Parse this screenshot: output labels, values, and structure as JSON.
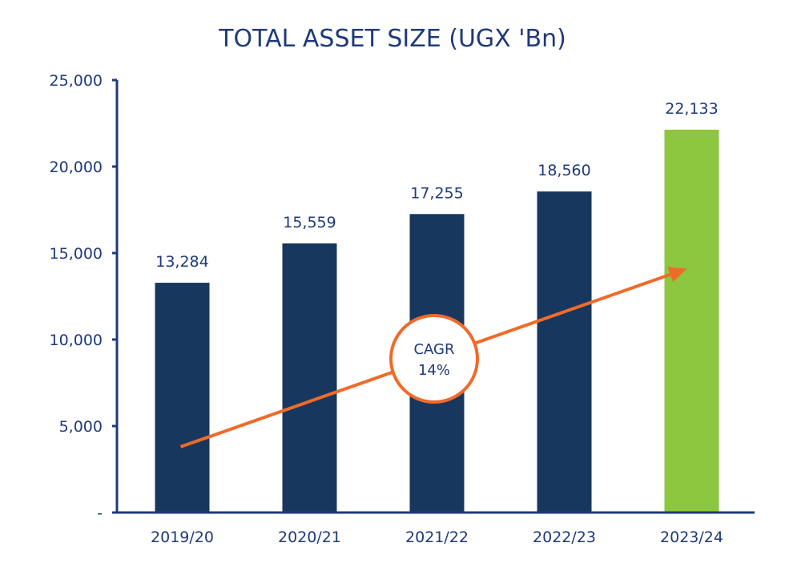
{
  "chart_data": {
    "type": "bar",
    "title": "TOTAL ASSET SIZE (UGX 'Bn)",
    "categories": [
      "2019/20",
      "2020/21",
      "2021/22",
      "2022/23",
      "2023/24"
    ],
    "values": [
      13284,
      15559,
      17255,
      18560,
      22133
    ],
    "value_labels": [
      "13,284",
      "15,559",
      "17,255",
      "18,560",
      "22,133"
    ],
    "ylim": [
      0,
      25000
    ],
    "y_ticks": [
      0,
      5000,
      10000,
      15000,
      20000,
      25000
    ],
    "y_tick_labels": [
      "-",
      "5,000",
      "10,000",
      "15,000",
      "20,000",
      "25,000"
    ],
    "xlabel": "",
    "ylabel": "",
    "grid": false,
    "annotation": {
      "line1": "CAGR",
      "line2": "14%"
    },
    "trend_arrow": {
      "from_value": 3800,
      "to_value": 14100
    },
    "colors": {
      "bar": "#17375e",
      "highlight_bar": "#8dc63f",
      "highlight_index": 4,
      "axis": "#1f3a7a",
      "arrow": "#ef6b2a",
      "text": "#1f3a7a"
    }
  }
}
